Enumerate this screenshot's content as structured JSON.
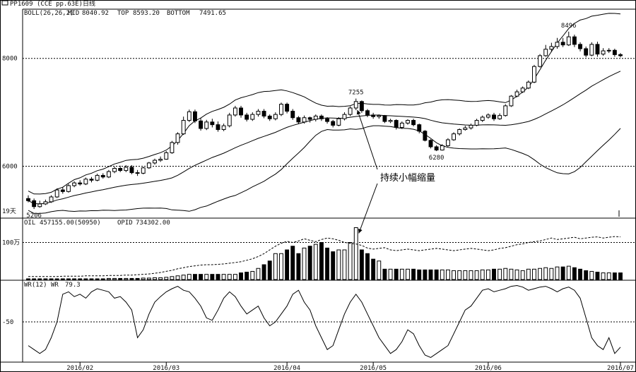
{
  "window": {
    "title": "PP1609",
    "subtitle": "(CCE pp.63E)日线"
  },
  "chart_data": [
    {
      "type": "candlestick",
      "panel": "price",
      "indicator": {
        "name": "BOLL(26,26,2)",
        "mid": "8040.92",
        "top": "8593.20",
        "bottom": "7491.65"
      },
      "header": {
        "name": "BOLL(26,26,2)",
        "mid_label": "MID",
        "mid_value": "8040.92",
        "top_label": "TOP",
        "top_value": "8593.20",
        "bottom_label": "BOTTOM",
        "bottom_value": "7491.65"
      },
      "y_ticks": [
        "8000",
        "6000"
      ],
      "y_tick_values": [
        8000,
        6000
      ],
      "ylim": [
        5050,
        8900
      ],
      "extra_labels": [
        "19天"
      ],
      "annotations": [
        {
          "text": "7255",
          "x_index": 57,
          "value": 7255
        },
        {
          "text": "6280",
          "x_index": 71,
          "value": 6280
        },
        {
          "text": "8496",
          "x_index": 94,
          "value": 8496
        },
        {
          "text": "5206",
          "x_index": 1,
          "value": 5206
        }
      ],
      "callout": {
        "text": "持续小幅缩量"
      },
      "candles": [
        [
          5400,
          5360,
          5460,
          5330
        ],
        [
          5360,
          5250,
          5400,
          5206
        ],
        [
          5250,
          5300,
          5360,
          5230
        ],
        [
          5300,
          5340,
          5380,
          5280
        ],
        [
          5340,
          5430,
          5460,
          5320
        ],
        [
          5430,
          5560,
          5590,
          5410
        ],
        [
          5560,
          5530,
          5610,
          5490
        ],
        [
          5530,
          5640,
          5670,
          5510
        ],
        [
          5640,
          5690,
          5720,
          5610
        ],
        [
          5690,
          5670,
          5740,
          5640
        ],
        [
          5670,
          5760,
          5790,
          5650
        ],
        [
          5760,
          5740,
          5800,
          5700
        ],
        [
          5740,
          5830,
          5860,
          5720
        ],
        [
          5830,
          5800,
          5870,
          5770
        ],
        [
          5800,
          5900,
          5930,
          5780
        ],
        [
          5900,
          5960,
          5990,
          5870
        ],
        [
          5960,
          5920,
          6010,
          5890
        ],
        [
          5920,
          5980,
          6020,
          5890
        ],
        [
          5980,
          5880,
          6020,
          5850
        ],
        [
          5880,
          5870,
          5930,
          5820
        ],
        [
          5870,
          5970,
          5990,
          5850
        ],
        [
          5970,
          6060,
          6080,
          5950
        ],
        [
          6060,
          6110,
          6140,
          6030
        ],
        [
          6110,
          6130,
          6180,
          6080
        ],
        [
          6130,
          6250,
          6280,
          6120
        ],
        [
          6250,
          6440,
          6470,
          6230
        ],
        [
          6440,
          6600,
          6630,
          6400
        ],
        [
          6600,
          6850,
          6920,
          6580
        ],
        [
          6850,
          7010,
          7050,
          6820
        ],
        [
          7010,
          6840,
          7050,
          6800
        ],
        [
          6840,
          6700,
          6900,
          6660
        ],
        [
          6700,
          6820,
          6860,
          6670
        ],
        [
          6820,
          6770,
          6880,
          6720
        ],
        [
          6770,
          6680,
          6830,
          6640
        ],
        [
          6680,
          6750,
          6790,
          6650
        ],
        [
          6750,
          6950,
          6990,
          6720
        ],
        [
          6950,
          7080,
          7120,
          6920
        ],
        [
          7080,
          6950,
          7120,
          6900
        ],
        [
          6950,
          6870,
          6990,
          6830
        ],
        [
          6870,
          6960,
          7000,
          6840
        ],
        [
          6960,
          7020,
          7060,
          6920
        ],
        [
          7020,
          6930,
          7060,
          6890
        ],
        [
          6930,
          6880,
          6960,
          6840
        ],
        [
          6880,
          6960,
          7000,
          6850
        ],
        [
          6960,
          7150,
          7180,
          6930
        ],
        [
          7150,
          7020,
          7180,
          6980
        ],
        [
          7020,
          6900,
          7060,
          6860
        ],
        [
          6900,
          6820,
          6930,
          6780
        ],
        [
          6820,
          6900,
          6940,
          6790
        ],
        [
          6900,
          6870,
          6920,
          6810
        ],
        [
          6870,
          6930,
          6960,
          6830
        ],
        [
          6930,
          6880,
          6960,
          6840
        ],
        [
          6880,
          6830,
          6910,
          6790
        ],
        [
          6830,
          6760,
          6860,
          6720
        ],
        [
          6760,
          6880,
          6910,
          6740
        ],
        [
          6880,
          6960,
          7000,
          6850
        ],
        [
          6960,
          7080,
          7110,
          6930
        ],
        [
          7080,
          7200,
          7255,
          7040
        ],
        [
          7200,
          7030,
          7220,
          6990
        ],
        [
          7030,
          6950,
          7060,
          6910
        ],
        [
          6950,
          6920,
          6990,
          6880
        ],
        [
          6920,
          6940,
          6960,
          6880
        ],
        [
          6940,
          6830,
          6950,
          6800
        ],
        [
          6830,
          6850,
          6880,
          6800
        ],
        [
          6850,
          6720,
          6870,
          6680
        ],
        [
          6720,
          6800,
          6830,
          6690
        ],
        [
          6800,
          6850,
          6870,
          6770
        ],
        [
          6850,
          6770,
          6880,
          6740
        ],
        [
          6770,
          6650,
          6790,
          6610
        ],
        [
          6650,
          6480,
          6670,
          6460
        ],
        [
          6480,
          6360,
          6500,
          6330
        ],
        [
          6360,
          6300,
          6390,
          6280
        ],
        [
          6300,
          6380,
          6410,
          6290
        ],
        [
          6380,
          6490,
          6520,
          6360
        ],
        [
          6490,
          6600,
          6630,
          6470
        ],
        [
          6600,
          6680,
          6700,
          6570
        ],
        [
          6680,
          6710,
          6750,
          6660
        ],
        [
          6710,
          6760,
          6790,
          6680
        ],
        [
          6760,
          6850,
          6880,
          6740
        ],
        [
          6850,
          6910,
          6940,
          6820
        ],
        [
          6910,
          6950,
          6980,
          6880
        ],
        [
          6950,
          6880,
          6990,
          6840
        ],
        [
          6880,
          6940,
          6980,
          6860
        ],
        [
          6940,
          7120,
          7150,
          6920
        ],
        [
          7120,
          7300,
          7320,
          7100
        ],
        [
          7300,
          7380,
          7420,
          7280
        ],
        [
          7380,
          7450,
          7480,
          7360
        ],
        [
          7450,
          7560,
          7590,
          7430
        ],
        [
          7560,
          7850,
          7880,
          7540
        ],
        [
          7850,
          8050,
          8080,
          7830
        ],
        [
          8050,
          8170,
          8250,
          8030
        ],
        [
          8170,
          8220,
          8290,
          8120
        ],
        [
          8220,
          8300,
          8380,
          8180
        ],
        [
          8300,
          8250,
          8380,
          8210
        ],
        [
          8250,
          8400,
          8496,
          8230
        ],
        [
          8400,
          8260,
          8440,
          8210
        ],
        [
          8260,
          8180,
          8300,
          8130
        ],
        [
          8180,
          8060,
          8220,
          8020
        ],
        [
          8060,
          8260,
          8300,
          8040
        ],
        [
          8260,
          8080,
          8310,
          8030
        ],
        [
          8080,
          8140,
          8190,
          8050
        ],
        [
          8140,
          8150,
          8190,
          8100
        ],
        [
          8150,
          8070,
          8180,
          8030
        ],
        [
          8070,
          8050,
          8100,
          8020
        ]
      ]
    },
    {
      "type": "bar+line",
      "panel": "volume",
      "header": {
        "name": "OIL",
        "oil_value": "457155.00(50950)",
        "opid_label": "OPID",
        "opid_value": "734302.00"
      },
      "y_ticks": [
        "100万"
      ],
      "y_tick_values": [
        100
      ],
      "ylim": [
        0,
        160
      ],
      "volume": [
        2,
        2,
        2,
        2,
        2,
        2,
        2,
        2,
        2,
        2,
        2,
        2,
        2,
        2,
        3,
        3,
        3,
        3,
        3,
        3,
        4,
        4,
        5,
        5,
        6,
        8,
        10,
        12,
        14,
        14,
        14,
        14,
        14,
        14,
        14,
        14,
        14,
        18,
        20,
        22,
        30,
        40,
        50,
        70,
        70,
        80,
        90,
        70,
        85,
        90,
        95,
        100,
        85,
        75,
        80,
        80,
        100,
        140,
        80,
        70,
        55,
        50,
        28,
        28,
        28,
        28,
        28,
        28,
        26,
        26,
        26,
        26,
        26,
        26,
        24,
        24,
        24,
        24,
        24,
        26,
        26,
        28,
        28,
        30,
        28,
        26,
        24,
        28,
        28,
        30,
        32,
        30,
        34,
        34,
        36,
        32,
        28,
        24,
        22,
        20,
        18,
        18,
        18,
        18
      ],
      "open_interest": [
        8,
        8,
        8,
        8,
        8,
        8,
        9,
        9,
        9,
        9,
        10,
        10,
        10,
        10,
        11,
        11,
        11,
        12,
        12,
        13,
        14,
        15,
        17,
        19,
        22,
        25,
        29,
        32,
        35,
        37,
        39,
        40,
        40,
        41,
        42,
        44,
        46,
        48,
        52,
        56,
        62,
        70,
        80,
        90,
        98,
        103,
        100,
        104,
        110,
        106,
        102,
        108,
        112,
        110,
        106,
        100,
        98,
        96,
        92,
        85,
        82,
        84,
        86,
        80,
        78,
        80,
        82,
        80,
        78,
        80,
        82,
        84,
        82,
        80,
        78,
        80,
        82,
        84,
        82,
        80,
        78,
        80,
        84,
        86,
        90,
        94,
        96,
        100,
        102,
        104,
        108,
        112,
        108,
        110,
        112,
        114,
        110,
        112,
        114,
        115,
        112,
        114,
        116,
        115
      ]
    },
    {
      "type": "line",
      "panel": "oscillator",
      "header": {
        "name": "WR(12)",
        "wr_label": "WR",
        "wr_value": "79.3"
      },
      "y_ticks": [
        "-50"
      ],
      "y_tick_values": [
        -50
      ],
      "ylim": [
        -100,
        0
      ],
      "values": [
        -80,
        -85,
        -90,
        -85,
        -70,
        -50,
        -15,
        -12,
        -18,
        -15,
        -20,
        -12,
        -8,
        -10,
        -12,
        -20,
        -18,
        -25,
        -35,
        -70,
        -60,
        -40,
        -25,
        -18,
        -12,
        -8,
        -5,
        -10,
        -12,
        -20,
        -30,
        -45,
        -48,
        -35,
        -20,
        -12,
        -18,
        -30,
        -40,
        -35,
        -30,
        -45,
        -55,
        -50,
        -40,
        -30,
        -15,
        -10,
        -25,
        -35,
        -55,
        -70,
        -85,
        -80,
        -60,
        -40,
        -25,
        -15,
        -25,
        -40,
        -55,
        -70,
        -80,
        -90,
        -85,
        -75,
        -60,
        -65,
        -80,
        -92,
        -95,
        -90,
        -85,
        -80,
        -65,
        -50,
        -35,
        -30,
        -20,
        -10,
        -8,
        -12,
        -10,
        -8,
        -5,
        -4,
        -6,
        -10,
        -8,
        -6,
        -5,
        -8,
        -12,
        -8,
        -6,
        -10,
        -20,
        -45,
        -70,
        -80,
        -85,
        -70,
        -90,
        -82
      ]
    }
  ],
  "x_axis": {
    "labels": [
      "2016/02",
      "2016/03",
      "2016/04",
      "2016/05",
      "2016/06",
      "2016/07"
    ],
    "label_index": [
      9,
      24,
      45,
      60,
      80,
      103
    ]
  }
}
